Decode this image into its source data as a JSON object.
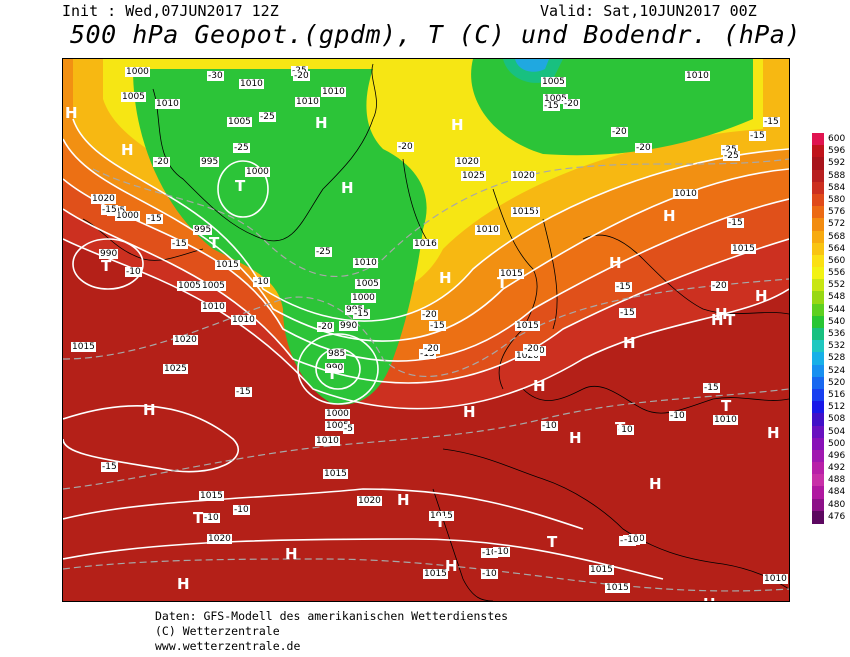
{
  "header": {
    "init": "Init : Wed,07JUN2017 12Z",
    "valid": "Valid: Sat,10JUN2017 00Z",
    "title": "500 hPa Geopot.(gpdm), T (C) und Bodendr. (hPa)"
  },
  "legend": {
    "values": [
      "600",
      "596",
      "592",
      "588",
      "584",
      "580",
      "576",
      "572",
      "568",
      "564",
      "560",
      "556",
      "552",
      "548",
      "544",
      "540",
      "536",
      "532",
      "528",
      "524",
      "520",
      "516",
      "512",
      "508",
      "504",
      "500",
      "496",
      "492",
      "488",
      "484",
      "480",
      "476"
    ],
    "colors": [
      "#e01450",
      "#c0141c",
      "#a8141c",
      "#b82020",
      "#cc3020",
      "#e04a1a",
      "#ec6a14",
      "#f28c10",
      "#f7aa10",
      "#f9c412",
      "#fbe014",
      "#f2f214",
      "#c8e614",
      "#98d814",
      "#5ed020",
      "#28c634",
      "#18c080",
      "#20c8c0",
      "#18b0e8",
      "#1890f0",
      "#1868f0",
      "#1840f0",
      "#1818e8",
      "#4010c8",
      "#6810c0",
      "#8810b8",
      "#a018b0",
      "#b820a8",
      "#c830a8",
      "#b018a0",
      "#8c1088",
      "#5c0860"
    ]
  },
  "map": {
    "pressure_labels": [
      "1000",
      "1005",
      "1010",
      "1010",
      "1010",
      "1005",
      "1010",
      "995",
      "1000",
      "995",
      "990",
      "1005",
      "1015",
      "1020",
      "1025",
      "1015",
      "1020",
      "1025",
      "1020",
      "1015",
      "1010",
      "1015",
      "1016",
      "1010",
      "1005",
      "1000",
      "995",
      "990",
      "985",
      "990",
      "1000",
      "1005",
      "1010",
      "1015",
      "1005",
      "1005",
      "1010",
      "1015",
      "1020",
      "1015",
      "1020",
      "1020",
      "1015",
      "1015",
      "1015",
      "1010",
      "1015",
      "1015",
      "1020",
      "995",
      "1000",
      "1005",
      "1010",
      "1010",
      "1015",
      "1010",
      "1010"
    ],
    "temp_labels": [
      "-30",
      "-20",
      "-25",
      "-25",
      "-25",
      "-20",
      "-20",
      "-15",
      "-15",
      "-15",
      "-10",
      "-10",
      "-15",
      "-25",
      "-20",
      "-20",
      "-15",
      "-15",
      "-15",
      "-20",
      "-20",
      "-20",
      "-25",
      "-25",
      "-15",
      "-15",
      "-15",
      "-20",
      "-20",
      "-15",
      "-15",
      "-20",
      "-15",
      "-10",
      "-10",
      "-10",
      "-10",
      "-10",
      "-10",
      "-10",
      "-15",
      "-15",
      "-5",
      "-10",
      "-10",
      "-10",
      "-20",
      "-10"
    ],
    "high_marker": "H",
    "low_marker": "T"
  },
  "footer": {
    "line1": "Daten: GFS-Modell des amerikanischen Wetterdienstes",
    "line2": "(C) Wetterzentrale",
    "line3": "www.wetterzentrale.de"
  }
}
